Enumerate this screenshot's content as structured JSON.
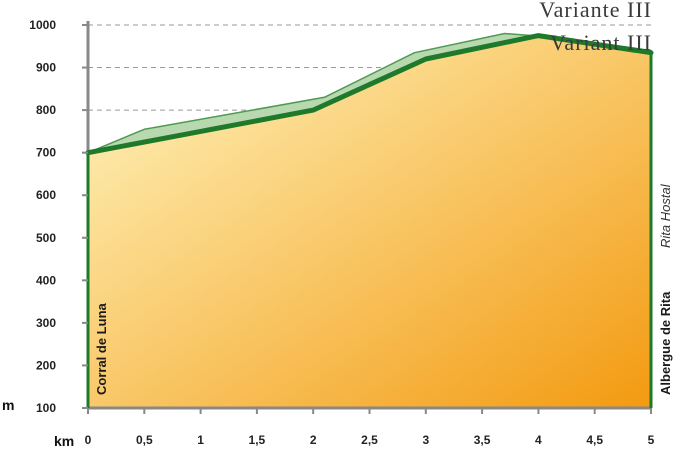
{
  "chart_data": {
    "type": "area",
    "titles": [
      "Variante III",
      "Variant III"
    ],
    "xlabel": "km",
    "ylabel": "m",
    "xlim": [
      0,
      5
    ],
    "ylim": [
      100,
      1000
    ],
    "x_ticks": [
      "0",
      "0,5",
      "1",
      "1,5",
      "2",
      "2,5",
      "3",
      "3,5",
      "4",
      "4,5",
      "5"
    ],
    "y_ticks": [
      "100",
      "200",
      "300",
      "400",
      "500",
      "600",
      "700",
      "800",
      "900",
      "1000"
    ],
    "grid": true,
    "series": [
      {
        "x": [
          0,
          1,
          2,
          3,
          4,
          5
        ],
        "y": [
          700,
          750,
          800,
          920,
          975,
          935
        ]
      },
      {
        "x": [
          0,
          0.5,
          2.1,
          2.9,
          3.7,
          4.2,
          5
        ],
        "y": [
          700,
          755,
          830,
          935,
          980,
          970,
          940
        ]
      }
    ],
    "annotations": {
      "start": "Corral de Luna",
      "end": "Albergue de Rita",
      "end_alt": "Rita Hostal"
    },
    "colors": {
      "main_line": "#1e7a2a",
      "variant_fill": "#b8d9b0",
      "variant_line": "#4e9a52",
      "grad_light": "#fff6c2",
      "grad_dark": "#f39a10",
      "axis": "#888888",
      "grid": "#999999"
    }
  }
}
